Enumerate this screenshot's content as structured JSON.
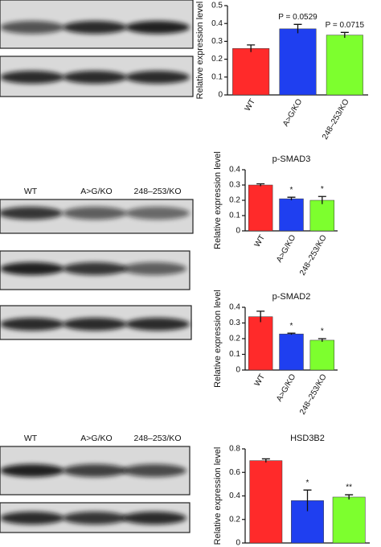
{
  "chart_data": [
    {
      "type": "bar",
      "y_label": "Relative expression level",
      "categories": [
        "WT",
        "A>G/KO",
        "248–253/KO"
      ],
      "values": [
        0.26,
        0.37,
        0.335
      ],
      "errors": [
        0.02,
        0.025,
        0.015
      ],
      "colors": [
        "#ff2a2a",
        "#1f3ff0",
        "#7dff2e"
      ],
      "ylim": [
        0,
        0.5
      ],
      "yticks": [
        0,
        0.1,
        0.2,
        0.3,
        0.4,
        0.5
      ],
      "annotations": [
        {
          "text": "P = 0.0529",
          "category": 1
        },
        {
          "text": "P = 0.0715",
          "category": 2
        }
      ]
    },
    {
      "type": "bar",
      "title": "p-SMAD3",
      "y_label": "Relative expression level",
      "categories": [
        "WT",
        "A>G/KO",
        "248–253/KO"
      ],
      "values": [
        0.3,
        0.21,
        0.2
      ],
      "errors": [
        0.008,
        0.01,
        0.025
      ],
      "colors": [
        "#ff2a2a",
        "#1f3ff0",
        "#7dff2e"
      ],
      "ylim": [
        0,
        0.4
      ],
      "yticks": [
        0,
        0.1,
        0.2,
        0.3,
        0.4
      ],
      "annotations": [
        {
          "text": "*",
          "category": 1
        },
        {
          "text": "*",
          "category": 2
        }
      ]
    },
    {
      "type": "bar",
      "title": "p-SMAD2",
      "y_label": "Relative expression level",
      "categories": [
        "WT",
        "A>G/KO",
        "248–253/KO"
      ],
      "values": [
        0.34,
        0.23,
        0.19
      ],
      "errors": [
        0.035,
        0.005,
        0.01
      ],
      "colors": [
        "#ff2a2a",
        "#1f3ff0",
        "#7dff2e"
      ],
      "ylim": [
        0,
        0.4
      ],
      "yticks": [
        0,
        0.1,
        0.2,
        0.3,
        0.4
      ],
      "annotations": [
        {
          "text": "*",
          "category": 1
        },
        {
          "text": "*",
          "category": 2
        }
      ]
    },
    {
      "type": "bar",
      "title": "HSD3B2",
      "y_label": "Relative expression level",
      "categories": [
        null,
        null,
        null
      ],
      "values": [
        0.7,
        0.36,
        0.39
      ],
      "errors": [
        0.015,
        0.09,
        0.02
      ],
      "colors": [
        "#ff2a2a",
        "#1f3ff0",
        "#7dff2e"
      ],
      "ylim": [
        0,
        0.8
      ],
      "yticks": [
        0,
        0.2,
        0.4,
        0.6,
        0.8
      ],
      "annotations": [
        {
          "text": "*",
          "category": 1
        },
        {
          "text": "**",
          "category": 2
        }
      ]
    }
  ],
  "blots": [
    {
      "lanes": [
        "WT",
        "A>G/KO",
        "248–253/KO"
      ]
    },
    {
      "lanes": [
        "WT",
        "A>G/KO",
        "248–253/KO"
      ]
    }
  ]
}
